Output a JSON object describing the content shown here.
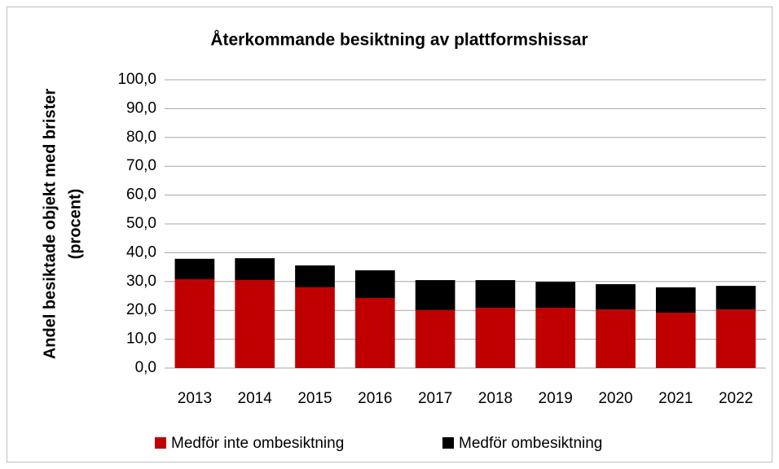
{
  "chart_data": {
    "type": "stacked_bar",
    "title": "Återkommande besiktning av plattformshissar",
    "ylabel": [
      "Andel besiktade objekt med brister",
      "(procent)"
    ],
    "categories": [
      "2013",
      "2014",
      "2015",
      "2016",
      "2017",
      "2018",
      "2019",
      "2020",
      "2021",
      "2022"
    ],
    "series": [
      {
        "name": "Medför inte ombesiktning",
        "color": "#c00000",
        "values": [
          30.8,
          30.5,
          28.0,
          24.3,
          20.1,
          20.9,
          20.9,
          20.3,
          19.2,
          20.3
        ]
      },
      {
        "name": "Medför ombesiktning",
        "color": "#000000",
        "values": [
          7.1,
          7.6,
          7.6,
          9.6,
          10.4,
          9.6,
          9.0,
          8.8,
          8.8,
          8.2
        ]
      }
    ],
    "ylim": [
      0,
      100
    ],
    "yticks": [
      {
        "value": 0,
        "label": "0,0"
      },
      {
        "value": 10,
        "label": "10,0"
      },
      {
        "value": 20,
        "label": "20,0"
      },
      {
        "value": 30,
        "label": "30,0"
      },
      {
        "value": 40,
        "label": "40,0"
      },
      {
        "value": 50,
        "label": "50,0"
      },
      {
        "value": 60,
        "label": "60,0"
      },
      {
        "value": 70,
        "label": "70,0"
      },
      {
        "value": 80,
        "label": "80,0"
      },
      {
        "value": 90,
        "label": "90,0"
      },
      {
        "value": 100,
        "label": "100,0"
      }
    ],
    "grid": true,
    "legend": "bottom"
  }
}
